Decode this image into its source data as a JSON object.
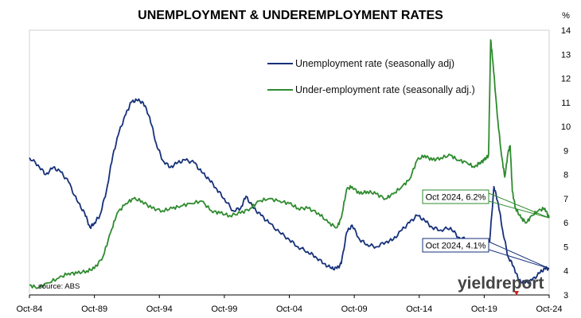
{
  "chart_data": {
    "type": "line",
    "title": "UNEMPLOYMENT & UNDEREMPLOYMENT RATES",
    "ylabel": "%",
    "y_axis_side": "right",
    "ylim": [
      3,
      14
    ],
    "yticks": [
      "3",
      "4",
      "5",
      "6",
      "7",
      "8",
      "9",
      "10",
      "11",
      "12",
      "13",
      "14"
    ],
    "xlim": [
      "1984-10",
      "2024-10"
    ],
    "xticks": [
      "Oct-84",
      "Oct-89",
      "Oct-94",
      "Oct-99",
      "Oct-04",
      "Oct-09",
      "Oct-14",
      "Oct-19",
      "Oct-24"
    ],
    "legend_position": "top-center",
    "grid": false,
    "series": [
      {
        "name": "Unemployment rate (seasonally adj)",
        "color": "#16307a",
        "points": [
          [
            "1984-10",
            8.7
          ],
          [
            "1985-06",
            8.4
          ],
          [
            "1986-01",
            8.0
          ],
          [
            "1986-08",
            8.3
          ],
          [
            "1987-03",
            8.1
          ],
          [
            "1987-10",
            7.7
          ],
          [
            "1988-06",
            6.9
          ],
          [
            "1989-01",
            6.4
          ],
          [
            "1989-06",
            5.8
          ],
          [
            "1989-10",
            6.0
          ],
          [
            "1990-03",
            6.3
          ],
          [
            "1990-09",
            7.3
          ],
          [
            "1991-03",
            8.8
          ],
          [
            "1991-09",
            9.8
          ],
          [
            "1992-03",
            10.5
          ],
          [
            "1992-08",
            11.0
          ],
          [
            "1993-01",
            11.1
          ],
          [
            "1993-07",
            11.0
          ],
          [
            "1994-01",
            10.4
          ],
          [
            "1994-07",
            9.3
          ],
          [
            "1995-01",
            8.6
          ],
          [
            "1995-08",
            8.3
          ],
          [
            "1996-03",
            8.5
          ],
          [
            "1996-10",
            8.6
          ],
          [
            "1997-06",
            8.5
          ],
          [
            "1998-01",
            8.1
          ],
          [
            "1998-08",
            7.8
          ],
          [
            "1999-03",
            7.4
          ],
          [
            "1999-10",
            7.0
          ],
          [
            "2000-06",
            6.5
          ],
          [
            "2001-01",
            6.6
          ],
          [
            "2001-06",
            7.1
          ],
          [
            "2002-01",
            6.6
          ],
          [
            "2002-08",
            6.3
          ],
          [
            "2003-03",
            6.0
          ],
          [
            "2004-01",
            5.6
          ],
          [
            "2004-10",
            5.3
          ],
          [
            "2005-06",
            5.0
          ],
          [
            "2006-03",
            4.8
          ],
          [
            "2006-10",
            4.6
          ],
          [
            "2007-06",
            4.3
          ],
          [
            "2008-01",
            4.1
          ],
          [
            "2008-06",
            4.1
          ],
          [
            "2008-10",
            4.3
          ],
          [
            "2009-03",
            5.6
          ],
          [
            "2009-08",
            5.9
          ],
          [
            "2010-03",
            5.3
          ],
          [
            "2010-10",
            5.1
          ],
          [
            "2011-06",
            5.0
          ],
          [
            "2012-03",
            5.2
          ],
          [
            "2012-10",
            5.3
          ],
          [
            "2013-06",
            5.7
          ],
          [
            "2014-01",
            6.0
          ],
          [
            "2014-08",
            6.3
          ],
          [
            "2015-03",
            6.1
          ],
          [
            "2015-10",
            5.8
          ],
          [
            "2016-06",
            5.7
          ],
          [
            "2017-03",
            5.8
          ],
          [
            "2017-10",
            5.4
          ],
          [
            "2018-06",
            5.3
          ],
          [
            "2019-01",
            5.0
          ],
          [
            "2019-06",
            5.2
          ],
          [
            "2019-10",
            5.2
          ],
          [
            "2020-03",
            5.2
          ],
          [
            "2020-07",
            7.5
          ],
          [
            "2020-11",
            6.8
          ],
          [
            "2021-03",
            5.7
          ],
          [
            "2021-08",
            4.6
          ],
          [
            "2022-01",
            4.2
          ],
          [
            "2022-06",
            3.6
          ],
          [
            "2022-12",
            3.5
          ],
          [
            "2023-06",
            3.6
          ],
          [
            "2024-01",
            3.9
          ],
          [
            "2024-06",
            4.1
          ],
          [
            "2024-10",
            4.1
          ]
        ]
      },
      {
        "name": "Under-employment rate (seasonally adj.)",
        "color": "#2e8b2e",
        "points": [
          [
            "1984-10",
            3.4
          ],
          [
            "1985-06",
            3.3
          ],
          [
            "1986-03",
            3.5
          ],
          [
            "1987-01",
            3.7
          ],
          [
            "1987-10",
            3.9
          ],
          [
            "1988-06",
            3.9
          ],
          [
            "1989-03",
            4.0
          ],
          [
            "1989-10",
            4.1
          ],
          [
            "1990-06",
            4.6
          ],
          [
            "1991-01",
            5.6
          ],
          [
            "1991-07",
            6.4
          ],
          [
            "1992-03",
            6.8
          ],
          [
            "1992-10",
            7.0
          ],
          [
            "1993-06",
            6.9
          ],
          [
            "1994-03",
            6.6
          ],
          [
            "1995-01",
            6.5
          ],
          [
            "1995-10",
            6.6
          ],
          [
            "1996-06",
            6.7
          ],
          [
            "1997-03",
            6.8
          ],
          [
            "1998-01",
            6.9
          ],
          [
            "1998-10",
            6.5
          ],
          [
            "1999-06",
            6.4
          ],
          [
            "2000-03",
            6.3
          ],
          [
            "2001-01",
            6.4
          ],
          [
            "2001-10",
            6.6
          ],
          [
            "2002-06",
            6.9
          ],
          [
            "2003-03",
            7.0
          ],
          [
            "2004-01",
            6.9
          ],
          [
            "2004-10",
            6.8
          ],
          [
            "2005-06",
            6.6
          ],
          [
            "2006-03",
            6.6
          ],
          [
            "2007-01",
            6.4
          ],
          [
            "2007-10",
            6.0
          ],
          [
            "2008-06",
            5.8
          ],
          [
            "2008-10",
            6.2
          ],
          [
            "2009-03",
            7.4
          ],
          [
            "2009-08",
            7.5
          ],
          [
            "2010-03",
            7.2
          ],
          [
            "2010-10",
            7.3
          ],
          [
            "2011-06",
            7.2
          ],
          [
            "2012-03",
            7.0
          ],
          [
            "2012-10",
            7.2
          ],
          [
            "2013-06",
            7.5
          ],
          [
            "2014-01",
            7.8
          ],
          [
            "2014-08",
            8.6
          ],
          [
            "2015-03",
            8.8
          ],
          [
            "2015-10",
            8.6
          ],
          [
            "2016-06",
            8.7
          ],
          [
            "2017-03",
            8.8
          ],
          [
            "2017-10",
            8.6
          ],
          [
            "2018-06",
            8.5
          ],
          [
            "2019-01",
            8.3
          ],
          [
            "2019-06",
            8.5
          ],
          [
            "2019-10",
            8.6
          ],
          [
            "2020-02",
            8.8
          ],
          [
            "2020-04",
            13.6
          ],
          [
            "2020-06",
            12.7
          ],
          [
            "2020-10",
            10.5
          ],
          [
            "2021-02",
            8.8
          ],
          [
            "2021-05",
            7.9
          ],
          [
            "2021-08",
            8.9
          ],
          [
            "2021-10",
            9.2
          ],
          [
            "2021-12",
            7.3
          ],
          [
            "2022-03",
            6.6
          ],
          [
            "2022-08",
            6.2
          ],
          [
            "2023-01",
            6.0
          ],
          [
            "2023-06",
            6.3
          ],
          [
            "2023-12",
            6.5
          ],
          [
            "2024-06",
            6.6
          ],
          [
            "2024-10",
            6.2
          ]
        ]
      }
    ],
    "annotations": [
      {
        "text": "Oct 2024, 6.2%",
        "series": 1,
        "x": "2024-10",
        "y": 6.2
      },
      {
        "text": "Oct 2024, 4.1%",
        "series": 0,
        "x": "2024-10",
        "y": 4.1
      }
    ],
    "source": "source: ABS",
    "watermark": "yieldreport"
  }
}
